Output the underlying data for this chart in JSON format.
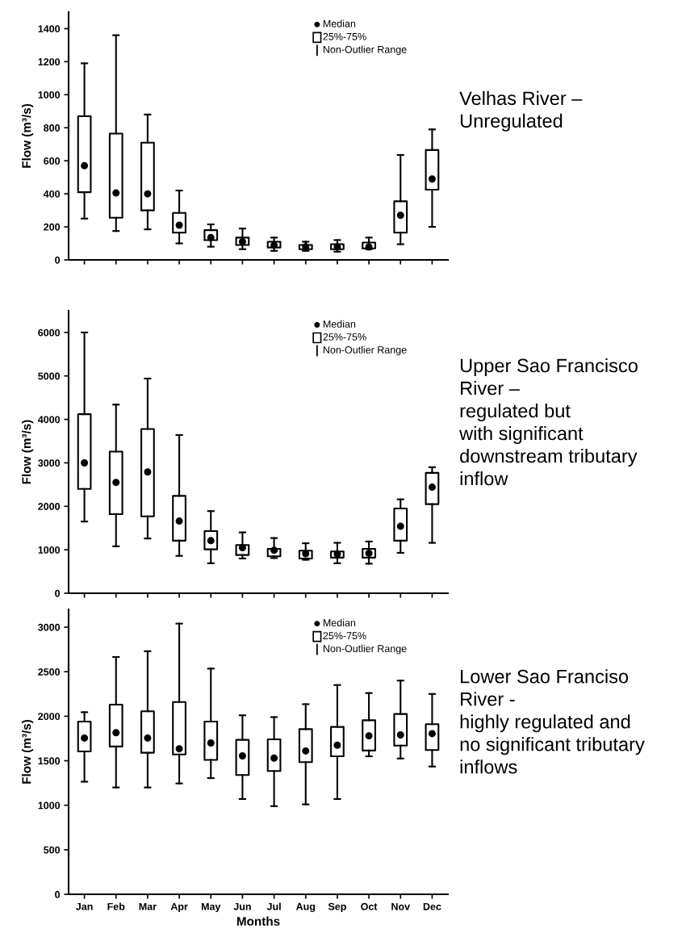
{
  "chart_data": [
    {
      "type": "box",
      "ylabel": "Flow (m³/s)",
      "categories": [
        null,
        null,
        null,
        null,
        null,
        null,
        null,
        null,
        null,
        null,
        null,
        null
      ],
      "tick_labels": "y",
      "ylim": [
        0,
        1500
      ],
      "yticks": [
        0,
        200,
        400,
        600,
        800,
        1000,
        1200,
        1400
      ],
      "annotations": [
        "Median",
        "25%-75%",
        "Non-Outlier Range",
        "Velhas River –\nUnregulated"
      ],
      "boxes": [
        {
          "low": 250,
          "q1": 410,
          "median": 570,
          "q3": 870,
          "high": 1190
        },
        {
          "low": 175,
          "q1": 255,
          "median": 405,
          "q3": 765,
          "high": 1360
        },
        {
          "low": 185,
          "q1": 300,
          "median": 400,
          "q3": 710,
          "high": 880
        },
        {
          "low": 100,
          "q1": 165,
          "median": 210,
          "q3": 285,
          "high": 420
        },
        {
          "low": 80,
          "q1": 120,
          "median": 135,
          "q3": 180,
          "high": 215
        },
        {
          "low": 65,
          "q1": 90,
          "median": 110,
          "q3": 135,
          "high": 190
        },
        {
          "low": 55,
          "q1": 75,
          "median": 90,
          "q3": 110,
          "high": 135
        },
        {
          "low": 55,
          "q1": 65,
          "median": 80,
          "q3": 90,
          "high": 110
        },
        {
          "low": 50,
          "q1": 65,
          "median": 80,
          "q3": 95,
          "high": 120
        },
        {
          "low": 65,
          "q1": 70,
          "median": 78,
          "q3": 105,
          "high": 135
        },
        {
          "low": 95,
          "q1": 165,
          "median": 270,
          "q3": 355,
          "high": 635
        },
        {
          "low": 200,
          "q1": 425,
          "median": 490,
          "q3": 665,
          "high": 790
        }
      ]
    },
    {
      "type": "box",
      "ylabel": "Flow (m³/s)",
      "categories": [
        null,
        null,
        null,
        null,
        null,
        null,
        null,
        null,
        null,
        null,
        null,
        null
      ],
      "tick_labels": "y",
      "ylim": [
        0,
        6500
      ],
      "yticks": [
        0,
        1000,
        2000,
        3000,
        4000,
        5000,
        6000
      ],
      "annotations": [
        "Median",
        "25%-75%",
        "Non-Outlier Range",
        "Upper Sao Francisco\nRiver –\nregulated but\nwith significant\ndownstream tributary\ninflow"
      ],
      "boxes": [
        {
          "low": 1650,
          "q1": 2400,
          "median": 3000,
          "q3": 4120,
          "high": 6000
        },
        {
          "low": 1080,
          "q1": 1820,
          "median": 2550,
          "q3": 3260,
          "high": 4340
        },
        {
          "low": 1260,
          "q1": 1770,
          "median": 2790,
          "q3": 3780,
          "high": 4940
        },
        {
          "low": 860,
          "q1": 1210,
          "median": 1660,
          "q3": 2240,
          "high": 3640
        },
        {
          "low": 690,
          "q1": 1010,
          "median": 1210,
          "q3": 1430,
          "high": 1890
        },
        {
          "low": 800,
          "q1": 880,
          "median": 1050,
          "q3": 1110,
          "high": 1400
        },
        {
          "low": 810,
          "q1": 850,
          "median": 990,
          "q3": 1020,
          "high": 1270
        },
        {
          "low": 770,
          "q1": 800,
          "median": 910,
          "q3": 980,
          "high": 1150
        },
        {
          "low": 690,
          "q1": 820,
          "median": 900,
          "q3": 960,
          "high": 1160
        },
        {
          "low": 680,
          "q1": 820,
          "median": 920,
          "q3": 1020,
          "high": 1190
        },
        {
          "low": 930,
          "q1": 1210,
          "median": 1540,
          "q3": 1950,
          "high": 2160
        },
        {
          "low": 1160,
          "q1": 2050,
          "median": 2440,
          "q3": 2770,
          "high": 2900
        }
      ]
    },
    {
      "type": "box",
      "ylabel": "Flow (m³/s)",
      "xlabel": "Months",
      "categories": [
        "Jan",
        "Feb",
        "Mar",
        "Apr",
        "May",
        "Jun",
        "Jul",
        "Aug",
        "Sep",
        "Oct",
        "Nov",
        "Dec"
      ],
      "ylim": [
        0,
        3200
      ],
      "yticks": [
        0,
        500,
        1000,
        1500,
        2000,
        2500,
        3000
      ],
      "annotations": [
        "Median",
        "25%-75%",
        "Non-Outlier Range",
        "Lower Sao Franciso\nRiver -\nhighly regulated and\nno significant tributary\ninflows"
      ],
      "boxes": [
        {
          "low": 1265,
          "q1": 1605,
          "median": 1755,
          "q3": 1940,
          "high": 2045
        },
        {
          "low": 1200,
          "q1": 1660,
          "median": 1815,
          "q3": 2130,
          "high": 2665
        },
        {
          "low": 1200,
          "q1": 1590,
          "median": 1755,
          "q3": 2055,
          "high": 2730
        },
        {
          "low": 1245,
          "q1": 1570,
          "median": 1635,
          "q3": 2160,
          "high": 3040
        },
        {
          "low": 1305,
          "q1": 1510,
          "median": 1700,
          "q3": 1940,
          "high": 2535
        },
        {
          "low": 1070,
          "q1": 1340,
          "median": 1555,
          "q3": 1735,
          "high": 2010
        },
        {
          "low": 990,
          "q1": 1385,
          "median": 1530,
          "q3": 1740,
          "high": 1990
        },
        {
          "low": 1010,
          "q1": 1485,
          "median": 1610,
          "q3": 1855,
          "high": 2135
        },
        {
          "low": 1070,
          "q1": 1550,
          "median": 1675,
          "q3": 1880,
          "high": 2350
        },
        {
          "low": 1550,
          "q1": 1615,
          "median": 1780,
          "q3": 1955,
          "high": 2260
        },
        {
          "low": 1525,
          "q1": 1670,
          "median": 1790,
          "q3": 2025,
          "high": 2400
        },
        {
          "low": 1435,
          "q1": 1620,
          "median": 1805,
          "q3": 1910,
          "high": 2250
        }
      ]
    }
  ]
}
